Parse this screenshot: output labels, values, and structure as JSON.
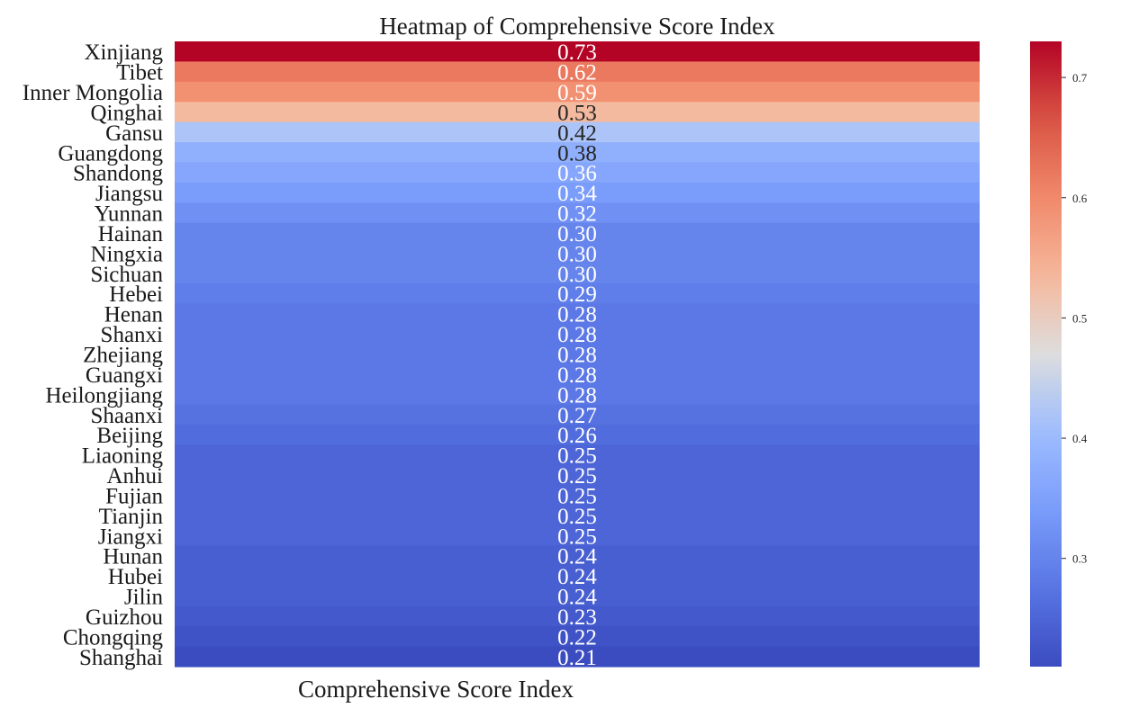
{
  "chart_data": {
    "type": "heatmap",
    "title": "Heatmap of Comprehensive Score Index",
    "xlabel": "Comprehensive Score Index",
    "ylabel": "",
    "column": "",
    "colormap": "coolwarm",
    "rows": [
      {
        "name": "Xinjiang",
        "value": 0.73,
        "label": "0.73"
      },
      {
        "name": "Tibet",
        "value": 0.62,
        "label": "0.62"
      },
      {
        "name": "Inner Mongolia",
        "value": 0.59,
        "label": "0.59"
      },
      {
        "name": "Qinghai",
        "value": 0.53,
        "label": "0.53"
      },
      {
        "name": "Gansu",
        "value": 0.42,
        "label": "0.42"
      },
      {
        "name": "Guangdong",
        "value": 0.38,
        "label": "0.38"
      },
      {
        "name": "Shandong",
        "value": 0.36,
        "label": "0.36"
      },
      {
        "name": "Jiangsu",
        "value": 0.34,
        "label": "0.34"
      },
      {
        "name": "Yunnan",
        "value": 0.32,
        "label": "0.32"
      },
      {
        "name": "Hainan",
        "value": 0.3,
        "label": "0.30"
      },
      {
        "name": "Ningxia",
        "value": 0.3,
        "label": "0.30"
      },
      {
        "name": "Sichuan",
        "value": 0.3,
        "label": "0.30"
      },
      {
        "name": "Hebei",
        "value": 0.29,
        "label": "0.29"
      },
      {
        "name": "Henan",
        "value": 0.28,
        "label": "0.28"
      },
      {
        "name": "Shanxi",
        "value": 0.28,
        "label": "0.28"
      },
      {
        "name": "Zhejiang",
        "value": 0.28,
        "label": "0.28"
      },
      {
        "name": "Guangxi",
        "value": 0.28,
        "label": "0.28"
      },
      {
        "name": "Heilongjiang",
        "value": 0.28,
        "label": "0.28"
      },
      {
        "name": "Shaanxi",
        "value": 0.27,
        "label": "0.27"
      },
      {
        "name": "Beijing",
        "value": 0.26,
        "label": "0.26"
      },
      {
        "name": "Liaoning",
        "value": 0.25,
        "label": "0.25"
      },
      {
        "name": "Anhui",
        "value": 0.25,
        "label": "0.25"
      },
      {
        "name": "Fujian",
        "value": 0.25,
        "label": "0.25"
      },
      {
        "name": "Tianjin",
        "value": 0.25,
        "label": "0.25"
      },
      {
        "name": "Jiangxi",
        "value": 0.25,
        "label": "0.25"
      },
      {
        "name": "Hunan",
        "value": 0.24,
        "label": "0.24"
      },
      {
        "name": "Hubei",
        "value": 0.24,
        "label": "0.24"
      },
      {
        "name": "Jilin",
        "value": 0.24,
        "label": "0.24"
      },
      {
        "name": "Guizhou",
        "value": 0.23,
        "label": "0.23"
      },
      {
        "name": "Chongqing",
        "value": 0.22,
        "label": "0.22"
      },
      {
        "name": "Shanghai",
        "value": 0.21,
        "label": "0.21"
      }
    ],
    "colorbar": {
      "range": [
        0.21,
        0.73
      ],
      "ticks": [
        {
          "value": 0.3,
          "label": "0.3"
        },
        {
          "value": 0.4,
          "label": "0.4"
        },
        {
          "value": 0.5,
          "label": "0.5"
        },
        {
          "value": 0.6,
          "label": "0.6"
        },
        {
          "value": 0.7,
          "label": "0.7"
        }
      ]
    }
  }
}
